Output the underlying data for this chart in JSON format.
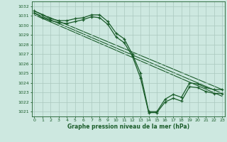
{
  "xlabel": "Graphe pression niveau de la mer (hPa)",
  "ylim": [
    1020.5,
    1032.5
  ],
  "xlim": [
    -0.3,
    23.3
  ],
  "yticks": [
    1021,
    1022,
    1023,
    1024,
    1025,
    1026,
    1027,
    1028,
    1029,
    1030,
    1031,
    1032
  ],
  "xticks": [
    0,
    1,
    2,
    3,
    4,
    5,
    6,
    7,
    8,
    9,
    10,
    11,
    12,
    13,
    14,
    15,
    16,
    17,
    18,
    19,
    20,
    21,
    22,
    23
  ],
  "bg_color": "#cde8e0",
  "line_color": "#1a5c2a",
  "line1_x": [
    0,
    1,
    2,
    3,
    4,
    5,
    6,
    7,
    8,
    9,
    10,
    11,
    12,
    13,
    14,
    15,
    16,
    17,
    18,
    19,
    20,
    21,
    22,
    23
  ],
  "line1_y": [
    1031.5,
    1031.1,
    1030.7,
    1030.5,
    1030.5,
    1030.7,
    1030.8,
    1031.1,
    1031.1,
    1030.4,
    1029.2,
    1028.6,
    1027.0,
    1025.0,
    1021.0,
    1021.0,
    1022.3,
    1022.8,
    1022.5,
    1024.0,
    1023.9,
    1023.5,
    1023.3,
    1023.3
  ],
  "line2_x": [
    0,
    1,
    2,
    3,
    4,
    5,
    6,
    7,
    8,
    9,
    10,
    11,
    12,
    13,
    14,
    15,
    16,
    17,
    18,
    19,
    20,
    21,
    22,
    23
  ],
  "line2_y": [
    1031.3,
    1030.8,
    1030.5,
    1030.3,
    1030.2,
    1030.4,
    1030.6,
    1030.9,
    1030.8,
    1030.1,
    1028.8,
    1028.2,
    1026.8,
    1024.5,
    1020.9,
    1020.9,
    1022.0,
    1022.4,
    1022.1,
    1023.6,
    1023.5,
    1023.1,
    1022.9,
    1022.9
  ],
  "trend1_x": [
    0,
    23
  ],
  "trend1_y": [
    1031.5,
    1023.3
  ],
  "trend2_x": [
    0,
    23
  ],
  "trend2_y": [
    1031.3,
    1022.9
  ],
  "trend3_x": [
    0,
    23
  ],
  "trend3_y": [
    1031.1,
    1022.6
  ]
}
